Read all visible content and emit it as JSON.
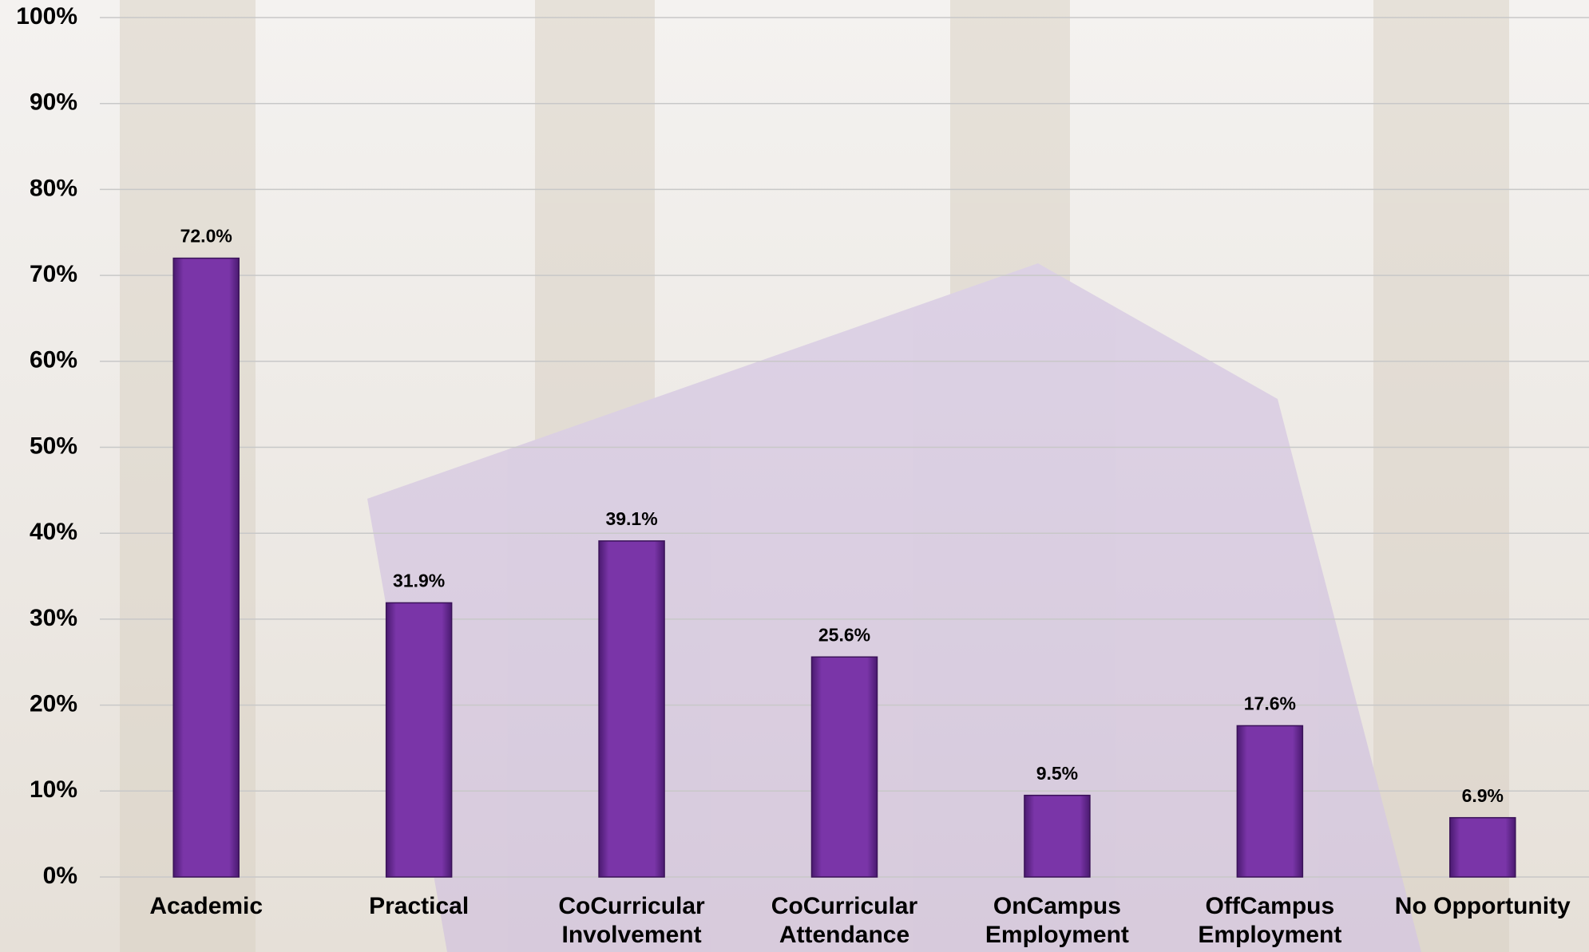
{
  "chart_data": {
    "type": "bar",
    "categories": [
      "Academic",
      "Practical",
      "CoCurricular Involvement",
      "CoCurricular Attendance",
      "OnCampus Employment",
      "OffCampus Employment",
      "No Opportunity"
    ],
    "values": [
      72.0,
      31.9,
      39.1,
      25.6,
      9.5,
      17.6,
      6.9
    ],
    "value_labels": [
      "72.0%",
      "31.9%",
      "39.1%",
      "25.6%",
      "9.5%",
      "17.6%",
      "6.9%"
    ],
    "color": "#7a35a8",
    "ylim": [
      0,
      100
    ],
    "yticks": [
      {
        "value": 0,
        "label": "0%"
      },
      {
        "value": 10,
        "label": "10%"
      },
      {
        "value": 20,
        "label": "20%"
      },
      {
        "value": 30,
        "label": "30%"
      },
      {
        "value": 40,
        "label": "40%"
      },
      {
        "value": 50,
        "label": "50%"
      },
      {
        "value": 60,
        "label": "60%"
      },
      {
        "value": 70,
        "label": "70%"
      },
      {
        "value": 80,
        "label": "80%"
      },
      {
        "value": 90,
        "label": "90%"
      },
      {
        "value": 100,
        "label": "100%"
      }
    ],
    "grid": true
  }
}
